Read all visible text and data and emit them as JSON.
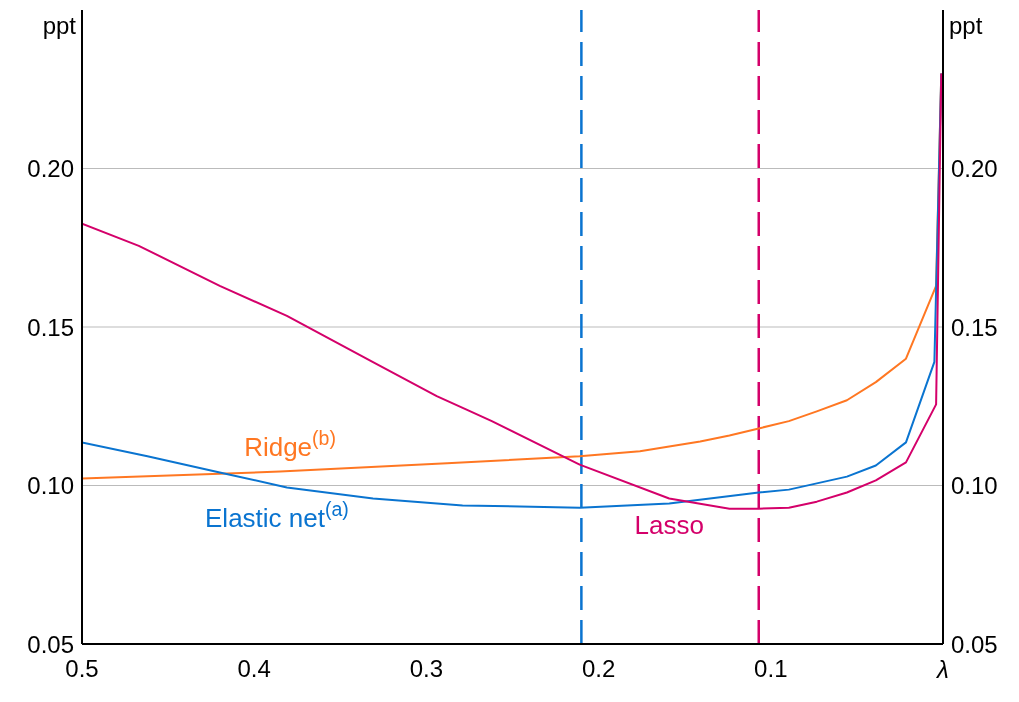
{
  "chart_data": {
    "type": "line",
    "xlabel": "λ",
    "ylabel": "ppt",
    "y2label": "ppt",
    "xlim": [
      0.5,
      0
    ],
    "xticks": [
      0.5,
      0.4,
      0.3,
      0.2,
      0.1
    ],
    "ylim": [
      0.05,
      0.25
    ],
    "yticks": [
      {
        "value": 0.05,
        "label": "0.05"
      },
      {
        "value": 0.1,
        "label": "0.10"
      },
      {
        "value": 0.15,
        "label": "0.15"
      },
      {
        "value": 0.2,
        "label": "0.20"
      }
    ],
    "y2lim": [
      0.05,
      0.25
    ],
    "y2ticks": [
      {
        "value": 0.05,
        "label": "0.05"
      },
      {
        "value": 0.1,
        "label": "0.10"
      },
      {
        "value": 0.15,
        "label": "0.15"
      },
      {
        "value": 0.2,
        "label": "0.20"
      }
    ],
    "grid": "y",
    "marker": "none",
    "line_style": "solid",
    "series": [
      {
        "name": "Ridge$^{(b)}$",
        "color": "#ff7722",
        "x": [
          0.5,
          0.385,
          0.288,
          0.211,
          0.176,
          0.159,
          0.141,
          0.124,
          0.107,
          0.0895,
          0.0733,
          0.0558,
          0.039,
          0.0215,
          0.004,
          0.001
        ],
        "values": [
          0.1022,
          0.1044,
          0.107,
          0.1092,
          0.1108,
          0.1123,
          0.1139,
          0.1158,
          0.118,
          0.1203,
          0.1234,
          0.1269,
          0.1326,
          0.14,
          0.163,
          0.23
        ]
      },
      {
        "name": "Elastic net$^{(a)}$",
        "color": "#0a74d0",
        "x": [
          0.5,
          0.462,
          0.42,
          0.381,
          0.331,
          0.279,
          0.211,
          0.159,
          0.107,
          0.0895,
          0.0558,
          0.039,
          0.0215,
          0.005,
          0.001
        ],
        "values": [
          0.1136,
          0.1092,
          0.1041,
          0.0994,
          0.0959,
          0.0937,
          0.093,
          0.0943,
          0.0978,
          0.0987,
          0.1028,
          0.1063,
          0.1136,
          0.139,
          0.23
        ]
      },
      {
        "name": "Lasso",
        "color": "#d4006a",
        "x": [
          0.5,
          0.467,
          0.42,
          0.381,
          0.331,
          0.294,
          0.277,
          0.262,
          0.211,
          0.159,
          0.124,
          0.107,
          0.0895,
          0.0733,
          0.0558,
          0.039,
          0.0215,
          0.004,
          0.001
        ],
        "values": [
          0.1826,
          0.1756,
          0.163,
          0.1535,
          0.1389,
          0.1282,
          0.124,
          0.1203,
          0.1066,
          0.0959,
          0.0927,
          0.0927,
          0.093,
          0.0949,
          0.0978,
          0.1016,
          0.1073,
          0.1256,
          0.23
        ]
      }
    ],
    "ref_lines": [
      {
        "axis": "x",
        "value": 0.21,
        "color": "#0a74d0",
        "line_style": "dashed"
      },
      {
        "axis": "x",
        "value": 0.107,
        "color": "#d4006a",
        "line_style": "dashed"
      }
    ]
  }
}
